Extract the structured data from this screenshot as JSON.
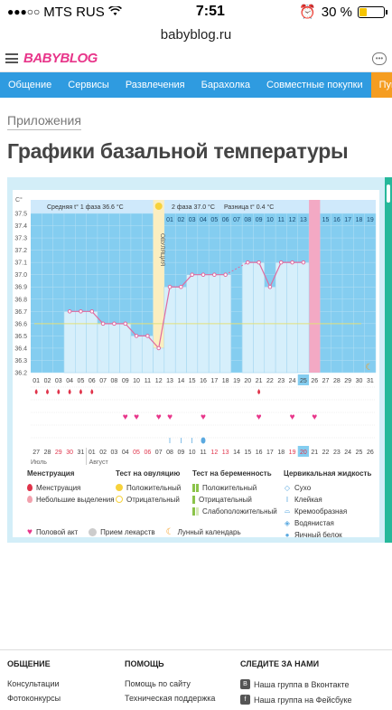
{
  "status": {
    "carrier": "MTS RUS",
    "time": "7:51",
    "battery": "30 %",
    "battery_level": 0.3
  },
  "url": "babyblog.ru",
  "header": {
    "logo": "BABYBLOG"
  },
  "nav": [
    "Общение",
    "Сервисы",
    "Развлечения",
    "Барахолка",
    "Совместные покупки",
    "Пупочная рана"
  ],
  "breadcrumb": "Приложения",
  "title": "Графики базальной температуры",
  "chart_data": {
    "type": "line",
    "unit_label": "C°",
    "summary": {
      "phase1": "Средняя t° 1 фаза 36.6 °С",
      "phase2": "2 фаза 37.0 °С",
      "diff": "Разница t° 0.4 °С"
    },
    "ovulation_label": "ОВУЛЯЦИЯ",
    "ylim": [
      36.2,
      37.5
    ],
    "yticks": [
      "37.5",
      "37.4",
      "37.3",
      "37.2",
      "37.1",
      "37.0",
      "36.9",
      "36.8",
      "36.7",
      "36.6",
      "36.5",
      "36.4",
      "36.3",
      "36.2"
    ],
    "cycle_days": [
      "01",
      "02",
      "03",
      "04",
      "05",
      "06",
      "07",
      "08",
      "09",
      "10",
      "11",
      "12",
      "13",
      "14",
      "15",
      "16",
      "17",
      "18",
      "19",
      "20",
      "21",
      "22",
      "23",
      "24",
      "25",
      "26",
      "27",
      "28",
      "29",
      "30",
      "31"
    ],
    "top_days": [
      "01",
      "02",
      "03",
      "04",
      "05",
      "06",
      "07",
      "08",
      "09",
      "10",
      "11",
      "12",
      "13",
      "14",
      "15",
      "16",
      "17",
      "18",
      "19"
    ],
    "temps": [
      null,
      null,
      null,
      36.7,
      36.7,
      36.7,
      36.6,
      36.6,
      36.6,
      36.5,
      36.5,
      36.4,
      36.9,
      36.9,
      37.0,
      37.0,
      37.0,
      37.0,
      null,
      37.1,
      37.1,
      36.9,
      37.1,
      37.1,
      37.1,
      null,
      null,
      null,
      null,
      null,
      null
    ],
    "dashed_segment": [
      18,
      20
    ],
    "average_line": 36.6,
    "ovulation_day": 12,
    "highlight_day": 26,
    "today_day": 25,
    "menstruation_days": [
      1,
      2,
      3,
      4,
      5,
      6
    ],
    "spotting_days": [
      21
    ],
    "intercourse_days": [
      9,
      10,
      12,
      13,
      16,
      21,
      24,
      26
    ],
    "test_days": [
      13,
      14,
      15,
      16
    ],
    "test_oval_day": 16,
    "calendar_dates": [
      "27",
      "28",
      "29",
      "30",
      "31",
      "01",
      "02",
      "03",
      "04",
      "05",
      "06",
      "07",
      "08",
      "09",
      "10",
      "11",
      "12",
      "13",
      "14",
      "15",
      "16",
      "17",
      "18",
      "19",
      "20",
      "21",
      "22",
      "23",
      "24",
      "25",
      "26"
    ],
    "red_dates": [
      3,
      4,
      10,
      11,
      17,
      18,
      24,
      25
    ],
    "month_labels": [
      "Июль",
      "Август"
    ]
  },
  "legend": {
    "menstruation": {
      "title": "Менструация",
      "items": [
        "Менструация",
        "Небольшие выделения"
      ]
    },
    "ovulation_test": {
      "title": "Тест на овуляцию",
      "items": [
        "Положительный",
        "Отрицательный"
      ]
    },
    "pregnancy_test": {
      "title": "Тест на беременность",
      "items": [
        "Положительный",
        "Отрицательный",
        "Слабоположительный"
      ]
    },
    "cervical": {
      "title": "Цервикальная жидкость",
      "items": [
        "Сухо",
        "Клейкая",
        "Кремообразная",
        "Водянистая",
        "Яичный белок"
      ]
    },
    "bottom": [
      "Половой акт",
      "Прием лекарств",
      "Лунный календарь"
    ]
  },
  "footer": {
    "col1": {
      "title": "ОБЩЕНИЕ",
      "links": [
        "Консультации",
        "Фотоконкурсы"
      ]
    },
    "col2": {
      "title": "ПОМОЩЬ",
      "links": [
        "Помощь по сайту",
        "Техническая поддержка"
      ]
    },
    "col3": {
      "title": "СЛЕДИТЕ ЗА НАМИ",
      "links": [
        "Наша группа в Вконтакте",
        "Наша группа на Фейсбуке"
      ]
    }
  },
  "colors": {
    "accent": "#2f9be0",
    "pink": "#e8358a",
    "orange": "#f59d21",
    "line": "#e06aa0"
  }
}
